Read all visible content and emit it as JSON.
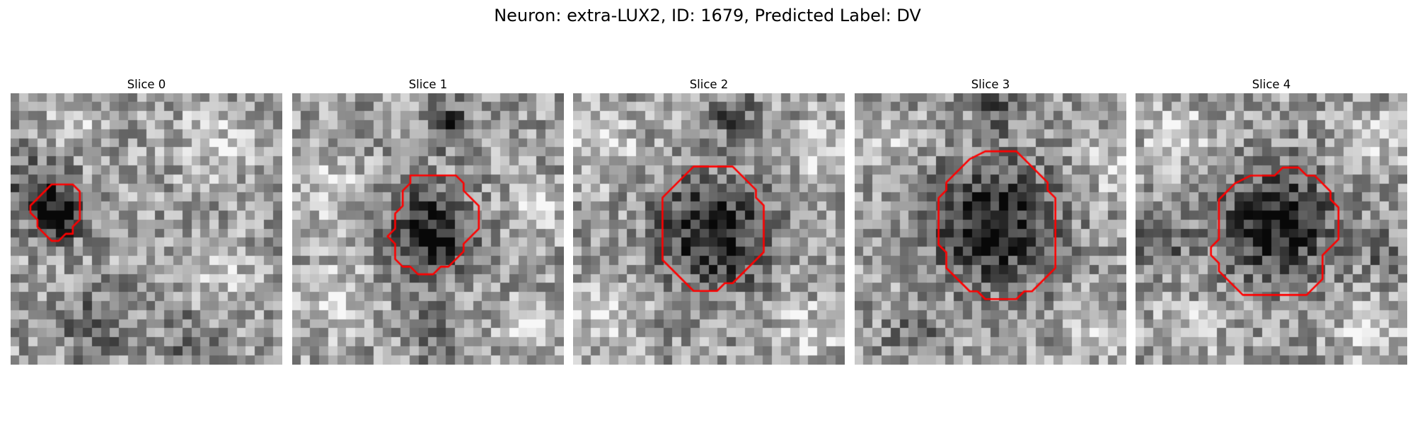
{
  "figure": {
    "title": "Neuron: extra-LUX2, ID: 1679, Predicted Label: DV"
  },
  "colors": {
    "contour": "#ff0000",
    "background": "#ffffff",
    "colormap": "gray"
  },
  "grid": {
    "cells": 30
  },
  "slices": [
    {
      "title": "Slice 0",
      "seed": 17,
      "contour": [
        [
          14,
          0
        ],
        [
          16,
          0
        ],
        [
          17,
          1
        ],
        [
          17,
          2
        ],
        [
          17,
          5
        ],
        [
          16,
          6
        ],
        [
          16,
          7
        ],
        [
          15,
          7
        ],
        [
          14,
          8
        ],
        [
          13,
          8
        ],
        [
          12,
          7
        ],
        [
          11,
          6
        ],
        [
          11,
          5
        ],
        [
          10,
          4
        ],
        [
          10,
          3
        ],
        [
          11,
          2
        ],
        [
          12,
          1
        ],
        [
          13,
          0
        ]
      ],
      "contour_center": [
        5.0,
        13.2
      ],
      "contour_scale": 0.78,
      "texture": {
        "dark_blobs": [
          [
            5,
            13,
            3.4,
            0.95
          ],
          [
            2,
            10,
            4.5,
            0.55
          ],
          [
            9,
            25,
            4.5,
            0.45
          ],
          [
            19,
            27,
            4.0,
            0.35
          ]
        ],
        "bright_blobs": [
          [
            7,
            3,
            3.5,
            0.35
          ],
          [
            22,
            5,
            4.5,
            0.4
          ],
          [
            23,
            20,
            4.0,
            0.35
          ]
        ]
      }
    },
    {
      "title": "Slice 1",
      "seed": 29,
      "contour": [
        [
          12,
          0
        ],
        [
          18,
          0
        ],
        [
          19,
          1
        ],
        [
          19,
          2
        ],
        [
          20,
          3
        ],
        [
          21,
          4
        ],
        [
          21,
          7
        ],
        [
          20,
          8
        ],
        [
          19,
          9
        ],
        [
          19,
          10
        ],
        [
          18,
          11
        ],
        [
          17,
          12
        ],
        [
          16,
          12
        ],
        [
          15,
          13
        ],
        [
          13,
          13
        ],
        [
          12,
          12
        ],
        [
          11,
          12
        ],
        [
          10,
          11
        ],
        [
          10,
          9
        ],
        [
          9,
          8
        ],
        [
          10,
          7
        ],
        [
          10,
          5
        ],
        [
          11,
          4
        ],
        [
          11,
          2
        ],
        [
          12,
          1
        ]
      ],
      "contour_center": [
        15.5,
        15.0
      ],
      "contour_scale": 0.84,
      "texture": {
        "dark_blobs": [
          [
            15,
            15,
            5.5,
            0.95
          ],
          [
            17,
            3,
            3.0,
            0.7
          ],
          [
            15,
            26,
            3.5,
            0.4
          ]
        ],
        "bright_blobs": [
          [
            4,
            10,
            4.0,
            0.45
          ],
          [
            26,
            12,
            3.5,
            0.45
          ],
          [
            4,
            22,
            4.5,
            0.45
          ],
          [
            25,
            25,
            3.5,
            0.4
          ]
        ]
      }
    },
    {
      "title": "Slice 2",
      "seed": 41,
      "contour": [
        [
          13,
          0
        ],
        [
          18,
          0
        ],
        [
          19,
          1
        ],
        [
          20,
          2
        ],
        [
          21,
          3
        ],
        [
          21,
          4
        ],
        [
          22,
          5
        ],
        [
          22,
          11
        ],
        [
          21,
          12
        ],
        [
          20,
          13
        ],
        [
          19,
          14
        ],
        [
          18,
          15
        ],
        [
          17,
          15
        ],
        [
          16,
          16
        ],
        [
          13,
          16
        ],
        [
          12,
          15
        ],
        [
          11,
          14
        ],
        [
          10,
          13
        ],
        [
          9,
          12
        ],
        [
          9,
          10
        ],
        [
          9,
          4
        ],
        [
          10,
          3
        ],
        [
          11,
          2
        ],
        [
          12,
          1
        ]
      ],
      "contour_center": [
        15.5,
        15.3
      ],
      "contour_scale": 0.86,
      "texture": {
        "dark_blobs": [
          [
            15,
            15,
            7.2,
            0.95
          ],
          [
            17,
            2,
            3.0,
            0.5
          ]
        ],
        "bright_blobs": [
          [
            3,
            5,
            4.5,
            0.45
          ],
          [
            27,
            6,
            4.0,
            0.4
          ],
          [
            3,
            24,
            4.0,
            0.4
          ],
          [
            25,
            26,
            4.0,
            0.45
          ]
        ]
      }
    },
    {
      "title": "Slice 3",
      "seed": 53,
      "contour": [
        [
          14,
          0
        ],
        [
          18,
          0
        ],
        [
          19,
          1
        ],
        [
          20,
          2
        ],
        [
          21,
          3
        ],
        [
          22,
          4
        ],
        [
          22,
          5
        ],
        [
          23,
          6
        ],
        [
          23,
          15
        ],
        [
          22,
          16
        ],
        [
          21,
          17
        ],
        [
          20,
          18
        ],
        [
          19,
          18
        ],
        [
          18,
          19
        ],
        [
          14,
          19
        ],
        [
          13,
          18
        ],
        [
          12,
          18
        ],
        [
          11,
          17
        ],
        [
          10,
          16
        ],
        [
          9,
          15
        ],
        [
          9,
          13
        ],
        [
          8,
          12
        ],
        [
          8,
          6
        ],
        [
          9,
          5
        ],
        [
          9,
          4
        ],
        [
          10,
          3
        ],
        [
          11,
          2
        ],
        [
          12,
          1
        ]
      ],
      "contour_center": [
        15.5,
        14.8
      ],
      "contour_scale": 0.86,
      "texture": {
        "dark_blobs": [
          [
            15,
            14,
            8.0,
            0.95
          ],
          [
            15,
            1,
            3.0,
            0.5
          ],
          [
            6,
            26,
            3.5,
            0.4
          ]
        ],
        "bright_blobs": [
          [
            3,
            5,
            3.5,
            0.4
          ],
          [
            28,
            8,
            3.5,
            0.4
          ],
          [
            26,
            26,
            3.5,
            0.45
          ]
        ]
      }
    },
    {
      "title": "Slice 4",
      "seed": 67,
      "contour": [
        [
          15,
          0
        ],
        [
          17,
          0
        ],
        [
          18,
          1
        ],
        [
          19,
          1
        ],
        [
          20,
          2
        ],
        [
          21,
          3
        ],
        [
          21,
          4
        ],
        [
          22,
          5
        ],
        [
          22,
          9
        ],
        [
          21,
          10
        ],
        [
          20,
          11
        ],
        [
          20,
          14
        ],
        [
          19,
          15
        ],
        [
          18,
          16
        ],
        [
          10,
          16
        ],
        [
          9,
          15
        ],
        [
          8,
          14
        ],
        [
          7,
          13
        ],
        [
          7,
          12
        ],
        [
          6,
          11
        ],
        [
          6,
          10
        ],
        [
          7,
          9
        ],
        [
          7,
          4
        ],
        [
          8,
          3
        ],
        [
          9,
          2
        ],
        [
          11,
          1
        ],
        [
          14,
          1
        ]
      ],
      "contour_center": [
        15.5,
        14.8
      ],
      "contour_scale": 0.88,
      "texture": {
        "dark_blobs": [
          [
            15,
            14,
            7.2,
            0.95
          ],
          [
            2,
            16,
            3.5,
            0.55
          ],
          [
            27,
            17,
            3.0,
            0.4
          ]
        ],
        "bright_blobs": [
          [
            4,
            4,
            4.0,
            0.45
          ],
          [
            25,
            5,
            4.0,
            0.4
          ],
          [
            5,
            26,
            3.5,
            0.4
          ],
          [
            25,
            26,
            3.5,
            0.45
          ]
        ]
      }
    }
  ]
}
